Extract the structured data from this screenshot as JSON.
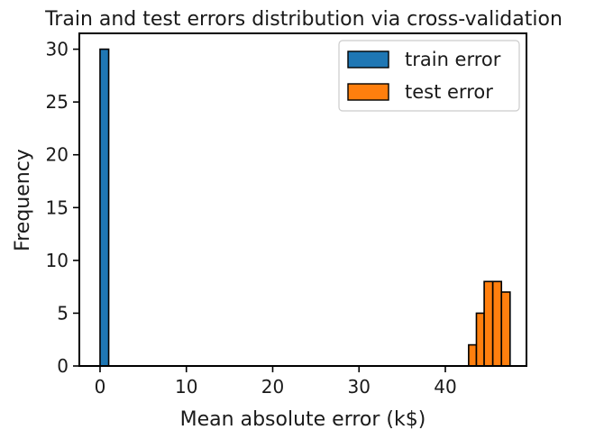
{
  "chart_data": {
    "type": "histogram",
    "title": "Train and test errors distribution via cross-validation",
    "xlabel": "Mean absolute error (k$)",
    "ylabel": "Frequency",
    "xlim": [
      -2.4,
      49.4
    ],
    "ylim": [
      0,
      31.5
    ],
    "xticks": [
      0,
      10,
      20,
      30,
      40
    ],
    "yticks": [
      0,
      5,
      10,
      15,
      20,
      25,
      30
    ],
    "grid": false,
    "legend_position": "top-right",
    "series": [
      {
        "name": "train error",
        "color": "#1f77b4",
        "bins": [
          {
            "x0": 0.0,
            "x1": 1.0,
            "count": 30
          }
        ]
      },
      {
        "name": "test error",
        "color": "#ff7f0e",
        "bins": [
          {
            "x0": 42.7,
            "x1": 43.6,
            "count": 2
          },
          {
            "x0": 43.6,
            "x1": 44.5,
            "count": 5
          },
          {
            "x0": 44.5,
            "x1": 45.5,
            "count": 8
          },
          {
            "x0": 45.5,
            "x1": 46.5,
            "count": 8
          },
          {
            "x0": 46.5,
            "x1": 47.5,
            "count": 7
          }
        ]
      }
    ]
  }
}
